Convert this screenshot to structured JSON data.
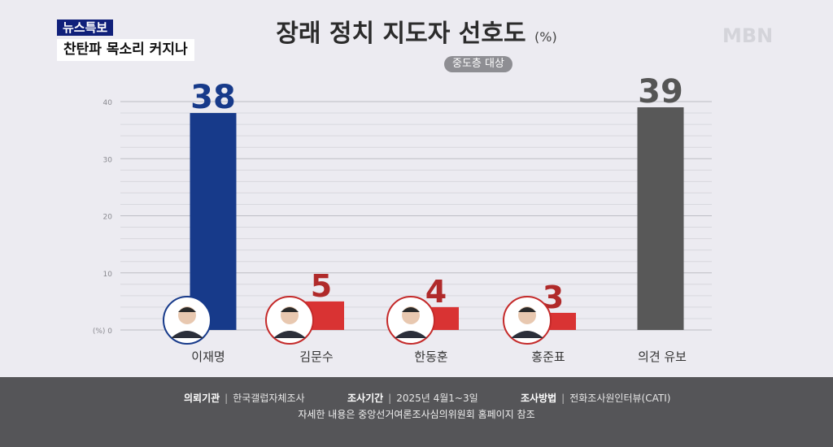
{
  "badge": {
    "label": "뉴스특보"
  },
  "headline": "찬탄파 목소리 커지나",
  "logo": "MBN",
  "chart_data": {
    "type": "bar",
    "title": "장래 정치 지도자 선호도",
    "title_unit": "(%)",
    "subtitle": "중도층 대상",
    "categories": [
      "이재명",
      "김문수",
      "한동훈",
      "홍준표",
      "의견 유보"
    ],
    "values": [
      38,
      5,
      4,
      3,
      39
    ],
    "bar_colors": [
      "#173a8a",
      "#d93333",
      "#d93333",
      "#d93333",
      "#585858"
    ],
    "label_colors": [
      "#173a8a",
      "#b02a2a",
      "#b02a2a",
      "#b02a2a",
      "#555555"
    ],
    "y_ticks": [
      "(%) 0",
      "10",
      "20",
      "30",
      "40"
    ],
    "y_tick_values": [
      0,
      10,
      20,
      30,
      40
    ],
    "ylim": [
      0,
      40
    ],
    "grid": true
  },
  "footer": {
    "client_label": "의뢰기관",
    "client_value": "한국갤럽자체조사",
    "period_label": "조사기간",
    "period_value": "2025년 4월1~3일",
    "method_label": "조사방법",
    "method_value": "전화조사원인터뷰(CATI)",
    "note": "자세한 내용은 중앙선거여론조사심의위원회 홈페이지 참조"
  }
}
